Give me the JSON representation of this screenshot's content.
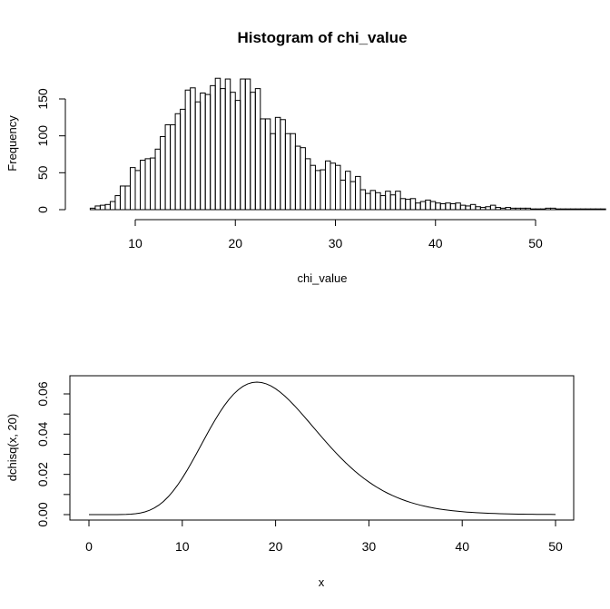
{
  "chart_data": [
    {
      "type": "bar",
      "title": "Histogram of chi_value",
      "xlabel": "chi_value",
      "ylabel": "Frequency",
      "bin_width": 0.5,
      "bin_start": 5.5,
      "values": [
        2,
        5,
        6,
        7,
        11,
        19,
        32,
        32,
        57,
        53,
        67,
        69,
        70,
        82,
        99,
        115,
        115,
        130,
        136,
        162,
        165,
        146,
        158,
        156,
        168,
        178,
        164,
        177,
        159,
        148,
        177,
        177,
        159,
        164,
        123,
        123,
        103,
        125,
        122,
        103,
        103,
        86,
        84,
        69,
        60,
        53,
        54,
        66,
        63,
        60,
        40,
        52,
        38,
        45,
        27,
        22,
        26,
        23,
        19,
        25,
        20,
        25,
        15,
        14,
        15,
        9,
        11,
        13,
        11,
        9,
        8,
        9,
        8,
        9,
        6,
        5,
        7,
        4,
        3,
        4,
        6,
        3,
        2,
        3,
        2,
        2,
        2,
        2,
        1,
        1,
        1,
        2,
        2,
        1,
        1,
        1,
        1,
        1,
        1,
        1,
        1,
        1,
        1
      ],
      "xlim": [
        5.5,
        52
      ],
      "ylim": [
        0,
        180
      ],
      "xticks": [
        10,
        20,
        30,
        40,
        50
      ],
      "yticks": [
        0,
        50,
        100,
        150
      ]
    },
    {
      "type": "line",
      "title": "",
      "xlabel": "x",
      "ylabel": "dchisq(x, 20)",
      "df": 20,
      "x_range": [
        0,
        50
      ],
      "xlim": [
        0,
        50
      ],
      "ylim": [
        0,
        0.0663
      ],
      "xticks": [
        0,
        10,
        20,
        30,
        40,
        50
      ],
      "yticks": [
        0,
        0.02,
        0.04,
        0.06
      ],
      "ytick_labels": [
        "0.00",
        "0.02",
        "0.04",
        "0.06"
      ]
    }
  ]
}
